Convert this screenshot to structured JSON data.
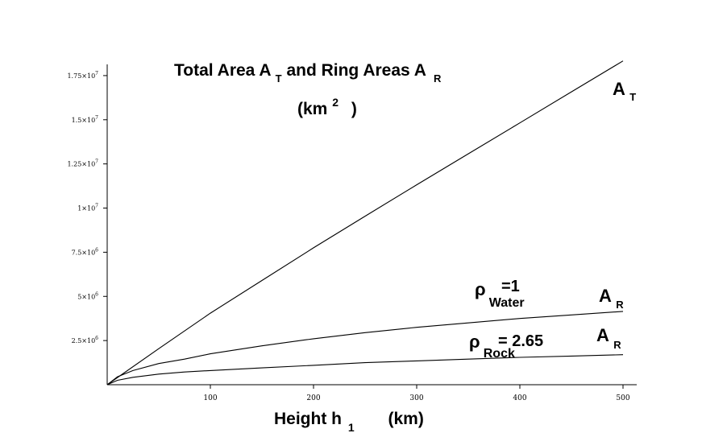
{
  "chart_data": {
    "type": "line",
    "title_main": "Total Area A",
    "title_sub_T": "T",
    "title_mid": "and Ring Areas A",
    "title_sub_R": "R",
    "title_unit_open": "(km",
    "title_unit_exp": "2",
    "title_unit_close": ")",
    "xlabel_main": "Height  h",
    "xlabel_sub": "1",
    "xlabel_unit": "(km)",
    "xlim": [
      0,
      500
    ],
    "ylim": [
      0,
      19000000
    ],
    "x_ticks": [
      {
        "value": 100,
        "label": "100"
      },
      {
        "value": 200,
        "label": "200"
      },
      {
        "value": 300,
        "label": "300"
      },
      {
        "value": 400,
        "label": "400"
      },
      {
        "value": 500,
        "label": "500"
      }
    ],
    "y_ticks": [
      {
        "value": 2500000,
        "mant": "2.5×10",
        "exp": "6"
      },
      {
        "value": 5000000,
        "mant": "5×10",
        "exp": "6"
      },
      {
        "value": 7500000,
        "mant": "7.5×10",
        "exp": "6"
      },
      {
        "value": 10000000,
        "mant": "1×10",
        "exp": "7"
      },
      {
        "value": 12500000,
        "mant": "1.25×10",
        "exp": "7"
      },
      {
        "value": 15000000,
        "mant": "1.5×10",
        "exp": "7"
      },
      {
        "value": 17500000,
        "mant": "1.75×10",
        "exp": "7"
      }
    ],
    "series": [
      {
        "name": "A_T",
        "x": [
          0,
          50,
          100,
          150,
          200,
          250,
          300,
          350,
          400,
          450,
          500
        ],
        "y": [
          0,
          2040000,
          4050000,
          5900000,
          7750000,
          9540000,
          11320000,
          13070000,
          14820000,
          16580000,
          18330000
        ]
      },
      {
        "name": "A_R water",
        "x": [
          0,
          10,
          25,
          50,
          75,
          100,
          150,
          200,
          250,
          300,
          350,
          400,
          450,
          500
        ],
        "y": [
          0,
          450000,
          800000,
          1200000,
          1450000,
          1750000,
          2200000,
          2600000,
          2950000,
          3250000,
          3500000,
          3750000,
          3950000,
          4150000
        ]
      },
      {
        "name": "A_R rock",
        "x": [
          0,
          10,
          25,
          50,
          75,
          100,
          150,
          200,
          250,
          300,
          350,
          400,
          450,
          500
        ],
        "y": [
          0,
          250000,
          420000,
          600000,
          720000,
          800000,
          950000,
          1100000,
          1250000,
          1350000,
          1450000,
          1550000,
          1620000,
          1700000
        ]
      }
    ],
    "labels": {
      "at": {
        "main": "A",
        "sub": "T"
      },
      "ar_water": {
        "main": "A",
        "sub": "R"
      },
      "ar_rock": {
        "main": "A",
        "sub": "R"
      },
      "rho_water": {
        "rho": "ρ",
        "sub": "Water",
        "eq": "=1"
      },
      "rho_rock": {
        "rho": "ρ",
        "sub": "Rock",
        "eq": "= 2.65"
      }
    }
  }
}
